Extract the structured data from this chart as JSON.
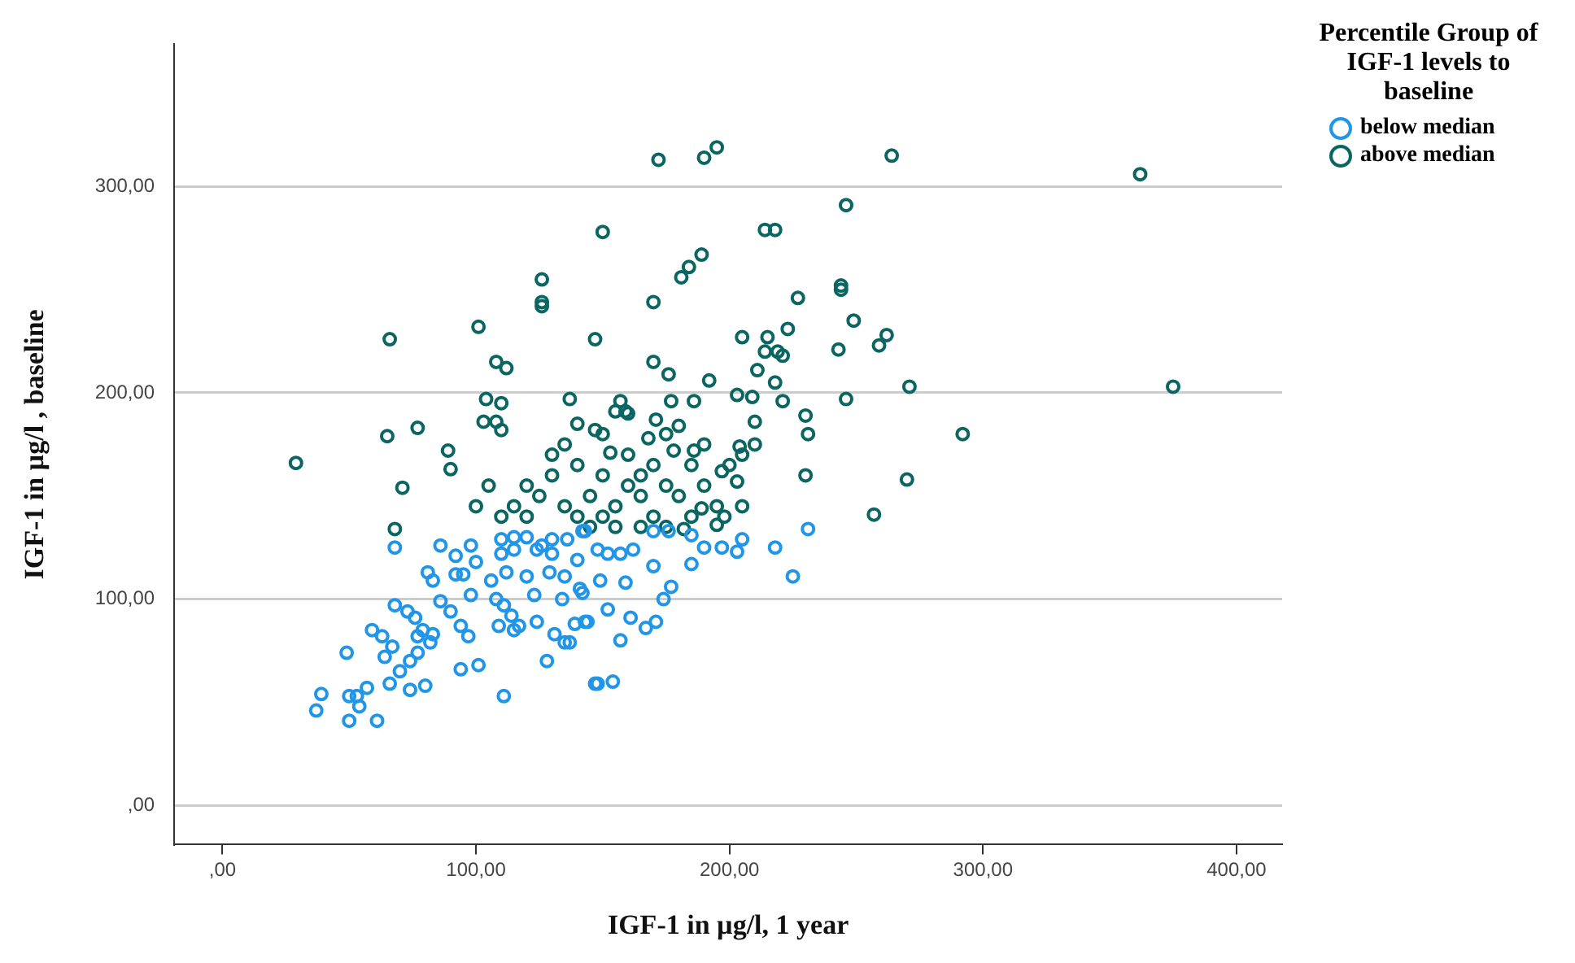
{
  "chart_data": {
    "type": "scatter",
    "xlabel": "IGF-1 in µg/l, 1 year",
    "ylabel": "IGF-1 in µg/l , baseline",
    "legend_title": "Percentile Group of IGF-1 levels to baseline",
    "legend": "top right",
    "grid": "y",
    "marker": "circle",
    "xlim": [
      -19,
      418
    ],
    "ylim": [
      -19,
      369
    ],
    "xticks": [
      {
        "value": 0,
        "label": ",00"
      },
      {
        "value": 100,
        "label": "100,00"
      },
      {
        "value": 200,
        "label": "200,00"
      },
      {
        "value": 300,
        "label": "300,00"
      },
      {
        "value": 400,
        "label": "400,00"
      }
    ],
    "yticks": [
      {
        "value": 0,
        "label": ",00"
      },
      {
        "value": 100,
        "label": "100,00"
      },
      {
        "value": 200,
        "label": "200,00"
      },
      {
        "value": 300,
        "label": "300,00"
      }
    ],
    "series": [
      {
        "name": "below median",
        "color": "#2196e8",
        "x": [
          68,
          68,
          49,
          39,
          37,
          50,
          61,
          50,
          53,
          57,
          54,
          66,
          74,
          80,
          59,
          63,
          67,
          64,
          70,
          74,
          77,
          82,
          73,
          76,
          79,
          83,
          77,
          94,
          101,
          111,
          86,
          90,
          94,
          98,
          97,
          86,
          92,
          98,
          100,
          95,
          92,
          81,
          83,
          108,
          111,
          114,
          117,
          109,
          115,
          110,
          115,
          120,
          126,
          130,
          136,
          143,
          110,
          115,
          124,
          130,
          140,
          106,
          112,
          120,
          129,
          135,
          141,
          124,
          131,
          135,
          128,
          139,
          144,
          147,
          123,
          134,
          142,
          142,
          148,
          152,
          157,
          162,
          170,
          176,
          185,
          190,
          197,
          203,
          205,
          218,
          231,
          225,
          170,
          185,
          149,
          159,
          177,
          174,
          152,
          161,
          167,
          171,
          143,
          157,
          148,
          154,
          137
        ],
        "values": [
          125,
          97,
          74,
          54,
          46,
          41,
          41,
          53,
          53,
          57,
          48,
          59,
          56,
          58,
          85,
          82,
          77,
          72,
          65,
          70,
          74,
          79,
          94,
          91,
          85,
          83,
          82,
          66,
          68,
          53,
          99,
          94,
          87,
          102,
          82,
          126,
          121,
          126,
          118,
          112,
          112,
          113,
          109,
          100,
          97,
          92,
          87,
          87,
          85,
          129,
          130,
          130,
          126,
          129,
          129,
          133,
          122,
          124,
          124,
          122,
          119,
          109,
          113,
          111,
          113,
          111,
          105,
          89,
          83,
          79,
          70,
          88,
          89,
          59,
          102,
          100,
          103,
          133,
          124,
          122,
          122,
          124,
          133,
          133,
          131,
          125,
          125,
          123,
          129,
          125,
          134,
          111,
          116,
          117,
          109,
          108,
          106,
          100,
          95,
          91,
          86,
          89,
          89,
          80,
          59,
          60,
          79
        ]
      },
      {
        "name": "above median",
        "color": "#0b6662",
        "x": [
          29,
          66,
          65,
          71,
          68,
          77,
          89,
          90,
          101,
          126,
          126,
          126,
          108,
          112,
          104,
          110,
          103,
          108,
          110,
          137,
          172,
          190,
          195,
          264,
          362,
          246,
          150,
          214,
          218,
          189,
          184,
          181,
          170,
          227,
          244,
          244,
          249,
          147,
          205,
          215,
          223,
          214,
          219,
          221,
          259,
          262,
          243,
          170,
          176,
          192,
          211,
          218,
          271,
          375,
          246,
          203,
          209,
          221,
          230,
          231,
          292,
          210,
          204,
          230,
          270,
          257,
          177,
          186,
          157,
          155,
          159,
          171,
          180,
          168,
          178,
          186,
          147,
          153,
          197,
          203,
          189,
          195,
          195,
          182,
          135,
          140,
          145,
          150,
          155,
          160,
          165,
          170,
          160,
          150,
          130,
          125,
          120,
          135,
          145,
          155,
          165,
          175,
          180,
          170,
          185,
          140,
          130,
          160,
          175,
          115,
          110,
          105,
          100,
          120,
          140,
          150,
          165,
          175,
          185,
          190,
          190,
          200,
          205,
          210,
          198,
          205
        ],
        "values": [
          166,
          226,
          179,
          154,
          134,
          183,
          172,
          163,
          232,
          255,
          244,
          242,
          215,
          212,
          197,
          195,
          186,
          186,
          182,
          197,
          313,
          314,
          319,
          315,
          306,
          291,
          278,
          279,
          279,
          267,
          261,
          256,
          244,
          246,
          252,
          250,
          235,
          226,
          227,
          227,
          231,
          220,
          220,
          218,
          223,
          228,
          221,
          215,
          209,
          206,
          211,
          205,
          203,
          203,
          197,
          199,
          198,
          196,
          189,
          180,
          180,
          186,
          174,
          160,
          158,
          141,
          196,
          196,
          196,
          191,
          191,
          187,
          184,
          178,
          172,
          172,
          182,
          171,
          162,
          157,
          144,
          145,
          136,
          134,
          175,
          165,
          150,
          160,
          145,
          170,
          150,
          140,
          155,
          180,
          160,
          150,
          140,
          145,
          135,
          135,
          160,
          155,
          150,
          165,
          165,
          185,
          170,
          190,
          180,
          145,
          140,
          155,
          145,
          155,
          140,
          140,
          135,
          135,
          140,
          155,
          175,
          165,
          170,
          175,
          140,
          145
        ]
      }
    ]
  }
}
